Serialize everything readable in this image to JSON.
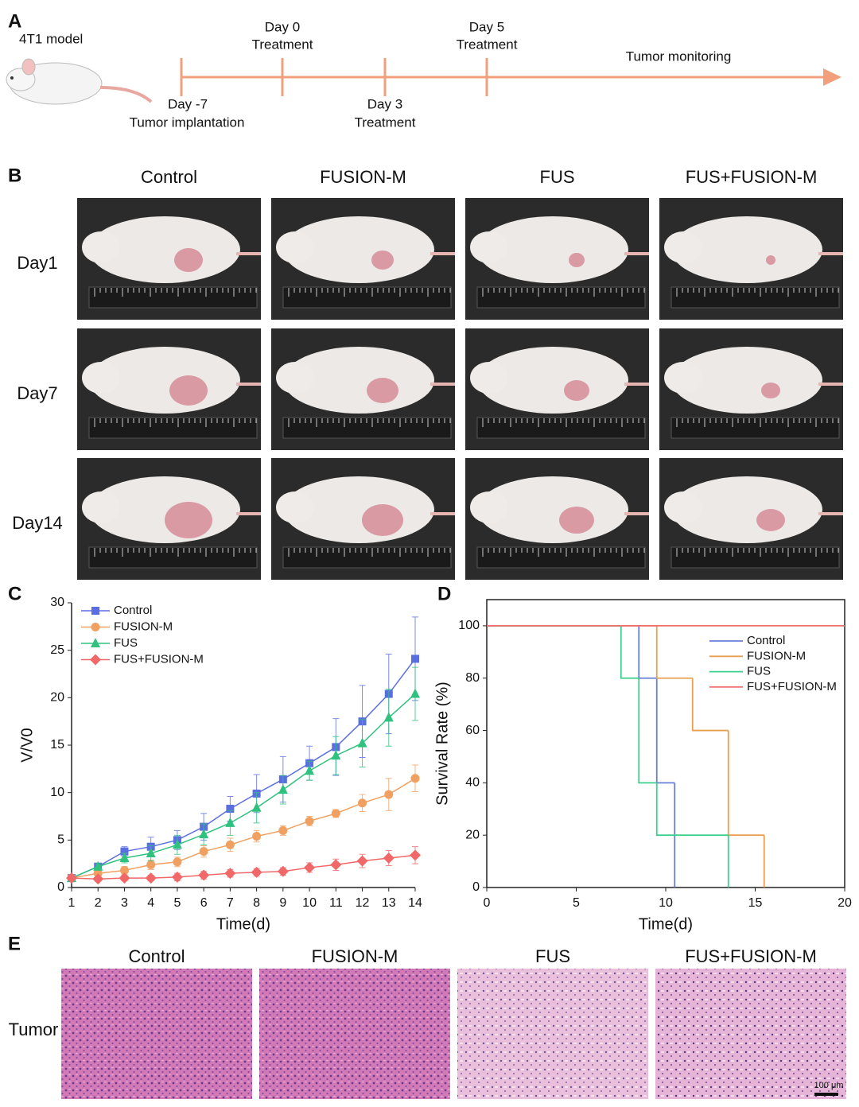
{
  "panel_labels": [
    "A",
    "B",
    "C",
    "D",
    "E"
  ],
  "timeline": {
    "model": "4T1 model",
    "events": [
      {
        "day": "Day -7",
        "label": "Tumor implantation"
      },
      {
        "day": "Day 0",
        "label": "Treatment"
      },
      {
        "day": "Day 3",
        "label": "Treatment"
      },
      {
        "day": "Day 5",
        "label": "Treatment"
      }
    ],
    "monitoring": "Tumor monitoring"
  },
  "photos": {
    "columns": [
      "Control",
      "FUSION-M",
      "FUS",
      "FUS+FUSION-M"
    ],
    "rows": [
      "Day1",
      "Day7",
      "Day14"
    ]
  },
  "chart_data": [
    {
      "type": "line",
      "ylabel": "V/V0",
      "xlabel": "Time(d)",
      "x": [
        1,
        2,
        3,
        4,
        5,
        6,
        7,
        8,
        9,
        10,
        11,
        12,
        13,
        14
      ],
      "xlim": [
        1,
        14
      ],
      "xticks": [
        1,
        2,
        3,
        4,
        5,
        6,
        7,
        8,
        9,
        10,
        11,
        12,
        13,
        14
      ],
      "ylim": [
        0,
        30
      ],
      "yticks": [
        0,
        5,
        10,
        15,
        20,
        25,
        30
      ],
      "legend": "upper left",
      "grid": false,
      "frame": false,
      "series": [
        {
          "name": "Control",
          "color": "#5b6ee1",
          "marker": "square",
          "values": [
            1,
            2.2,
            3.8,
            4.3,
            5.0,
            6.4,
            8.3,
            9.9,
            11.4,
            13.1,
            14.8,
            17.5,
            20.4,
            24.1
          ],
          "errors": [
            0,
            0.3,
            0.5,
            1.0,
            1.0,
            1.4,
            1.3,
            2.0,
            2.4,
            1.8,
            3.0,
            3.8,
            4.2,
            4.4
          ]
        },
        {
          "name": "FUSION-M",
          "color": "#f0a060",
          "marker": "circle",
          "values": [
            1,
            1.5,
            1.8,
            2.4,
            2.7,
            3.8,
            4.5,
            5.4,
            6.0,
            7.0,
            7.8,
            8.9,
            9.8,
            11.5
          ],
          "errors": [
            0,
            0.3,
            0.4,
            0.5,
            0.5,
            0.6,
            0.7,
            0.6,
            0.5,
            0.5,
            0.4,
            0.9,
            1.7,
            1.4
          ]
        },
        {
          "name": "FUS",
          "color": "#2ec27e",
          "marker": "triangle",
          "values": [
            1,
            2.2,
            3.1,
            3.6,
            4.5,
            5.6,
            6.8,
            8.4,
            10.3,
            12.3,
            13.9,
            15.2,
            17.9,
            20.4
          ],
          "errors": [
            0,
            0.3,
            0.5,
            0.8,
            1.0,
            1.1,
            1.3,
            1.6,
            1.5,
            1.0,
            2.0,
            2.5,
            3.0,
            2.8
          ]
        },
        {
          "name": "FUS+FUSION-M",
          "color": "#f06868",
          "marker": "diamond",
          "values": [
            1,
            0.9,
            1.0,
            1.0,
            1.1,
            1.3,
            1.5,
            1.6,
            1.7,
            2.1,
            2.4,
            2.8,
            3.1,
            3.4
          ],
          "errors": [
            0,
            0.2,
            0.3,
            0.3,
            0.4,
            0.4,
            0.4,
            0.4,
            0.4,
            0.5,
            0.6,
            0.7,
            0.8,
            0.9
          ]
        }
      ]
    },
    {
      "type": "step",
      "ylabel": "Survival Rate (%)",
      "xlabel": "Time(d)",
      "xlim": [
        0,
        20
      ],
      "xticks": [
        0,
        5,
        10,
        15,
        20
      ],
      "ylim": [
        0,
        110
      ],
      "yticks": [
        0,
        20,
        40,
        60,
        80,
        100
      ],
      "legend": "center right",
      "grid": false,
      "frame": true,
      "series": [
        {
          "name": "Control",
          "color": "#6a7fd8",
          "x": [
            0,
            8.5,
            9.5,
            10.5
          ],
          "values": [
            100,
            80,
            40,
            0
          ]
        },
        {
          "name": "FUSION-M",
          "color": "#e8a050",
          "x": [
            0,
            9.5,
            11.5,
            13.5,
            15.5
          ],
          "values": [
            100,
            80,
            60,
            20,
            0
          ]
        },
        {
          "name": "FUS",
          "color": "#3ccf8e",
          "x": [
            0,
            7.5,
            8.5,
            9.5,
            13.5
          ],
          "values": [
            100,
            80,
            40,
            20,
            0
          ]
        },
        {
          "name": "FUS+FUSION-M",
          "color": "#f07070",
          "x": [
            0,
            20
          ],
          "values": [
            100,
            100
          ]
        }
      ]
    }
  ],
  "histology": {
    "columns": [
      "Control",
      "FUSION-M",
      "FUS",
      "FUS+FUSION-M"
    ],
    "row": "Tumor",
    "scale_bar": "100 μm"
  }
}
